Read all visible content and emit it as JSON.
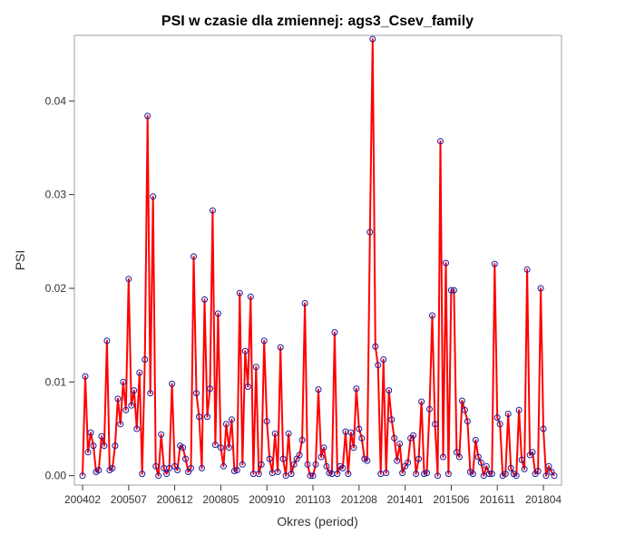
{
  "chart_data": {
    "type": "line",
    "title": "PSI w czasie dla zmiennej: ags3_Csev_family",
    "xlabel": "Okres (period)",
    "ylabel": "PSI",
    "x_tick_labels": [
      "200402",
      "200507",
      "200612",
      "200805",
      "200910",
      "201103",
      "201208",
      "201401",
      "201506",
      "201611",
      "201804"
    ],
    "y_tick_labels": [
      "0.00",
      "0.01",
      "0.02",
      "0.03",
      "0.04"
    ],
    "ylim": [
      -0.001,
      0.047
    ],
    "grid": false,
    "legend": "none",
    "line_color": "#ff0000",
    "marker_color": "#1a1aa0",
    "series": [
      {
        "values": [
          0.0,
          0.0106,
          0.0025,
          0.0046,
          0.0032,
          0.0004,
          0.0006,
          0.0042,
          0.0032,
          0.0144,
          0.0006,
          0.0008,
          0.0032,
          0.0082,
          0.0055,
          0.01,
          0.007,
          0.021,
          0.0075,
          0.0091,
          0.005,
          0.011,
          0.0002,
          0.0124,
          0.0384,
          0.0088,
          0.0298,
          0.001,
          0.0,
          0.0044,
          0.0008,
          0.0002,
          0.0008,
          0.0098,
          0.001,
          0.0006,
          0.0032,
          0.003,
          0.0018,
          0.0004,
          0.0008,
          0.0234,
          0.0088,
          0.0063,
          0.0008,
          0.0188,
          0.0063,
          0.0093,
          0.0283,
          0.0033,
          0.0173,
          0.003,
          0.001,
          0.0055,
          0.003,
          0.006,
          0.0005,
          0.0006,
          0.0195,
          0.0012,
          0.0133,
          0.0095,
          0.0191,
          0.0002,
          0.0116,
          0.0002,
          0.0012,
          0.0144,
          0.0058,
          0.0018,
          0.0003,
          0.0045,
          0.0004,
          0.0137,
          0.0018,
          0.0,
          0.0045,
          0.0002,
          0.0012,
          0.0018,
          0.0022,
          0.0038,
          0.0184,
          0.0012,
          0.0,
          0.0,
          0.0012,
          0.0092,
          0.002,
          0.003,
          0.001,
          0.0003,
          0.0002,
          0.0153,
          0.0002,
          0.001,
          0.0008,
          0.0047,
          0.0002,
          0.0046,
          0.003,
          0.0093,
          0.005,
          0.004,
          0.0018,
          0.0016,
          0.026,
          0.0466,
          0.0138,
          0.0118,
          0.0002,
          0.0124,
          0.0003,
          0.0091,
          0.006,
          0.004,
          0.0016,
          0.0034,
          0.0003,
          0.001,
          0.0014,
          0.004,
          0.0043,
          0.0002,
          0.0018,
          0.0079,
          0.0002,
          0.0003,
          0.0071,
          0.0171,
          0.0055,
          0.0,
          0.0357,
          0.002,
          0.0227,
          0.0002,
          0.0198,
          0.0198,
          0.0025,
          0.002,
          0.008,
          0.007,
          0.0058,
          0.0004,
          0.0002,
          0.0038,
          0.002,
          0.0014,
          0.0,
          0.001,
          0.0002,
          0.0002,
          0.0226,
          0.0062,
          0.0055,
          0.0,
          0.0002,
          0.0066,
          0.0008,
          0.0002,
          0.0,
          0.007,
          0.0017,
          0.0007,
          0.022,
          0.0022,
          0.0025,
          0.0002,
          0.0005,
          0.02,
          0.005,
          0.0,
          0.001,
          0.0004,
          0.0
        ]
      }
    ]
  }
}
